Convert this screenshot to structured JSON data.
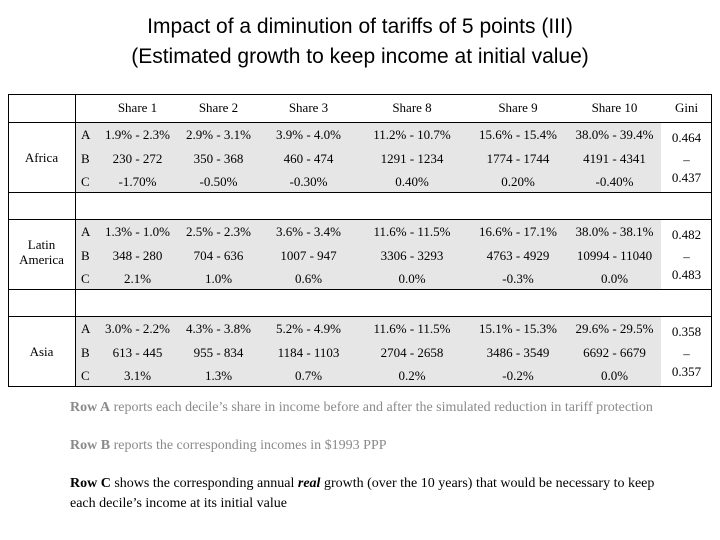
{
  "title": {
    "line1": "Impact of a diminution of tariffs of 5 points (III)",
    "line2": "(Estimated growth to keep income at initial value)"
  },
  "table": {
    "headers": [
      "Share 1",
      "Share 2",
      "Share 3",
      "Share 8",
      "Share 9",
      "Share 10",
      "Gini"
    ],
    "regions": [
      {
        "name": "Africa",
        "rows": [
          {
            "label": "A",
            "cells": [
              "1.9% - 2.3%",
              "2.9% - 3.1%",
              "3.9% - 4.0%",
              "11.2% - 10.7%",
              "15.6% - 15.4%",
              "38.0% - 39.4%"
            ]
          },
          {
            "label": "B",
            "cells": [
              "230 - 272",
              "350 - 368",
              "460 - 474",
              "1291 - 1234",
              "1774 - 1744",
              "4191 - 4341"
            ]
          },
          {
            "label": "C",
            "cells": [
              "-1.70%",
              "-0.50%",
              "-0.30%",
              "0.40%",
              "0.20%",
              "-0.40%"
            ]
          }
        ],
        "gini": {
          "start": "0.464",
          "sep": "–",
          "end": "0.437"
        }
      },
      {
        "name": "Latin America",
        "name_line1": "Latin",
        "name_line2": "America",
        "rows": [
          {
            "label": "A",
            "cells": [
              "1.3% - 1.0%",
              "2.5% - 2.3%",
              "3.6% - 3.4%",
              "11.6% - 11.5%",
              "16.6% - 17.1%",
              "38.0% - 38.1%"
            ]
          },
          {
            "label": "B",
            "cells": [
              "348 - 280",
              "704 - 636",
              "1007 - 947",
              "3306 - 3293",
              "4763 - 4929",
              "10994 - 11040"
            ]
          },
          {
            "label": "C",
            "cells": [
              "2.1%",
              "1.0%",
              "0.6%",
              "0.0%",
              "-0.3%",
              "0.0%"
            ]
          }
        ],
        "gini": {
          "start": "0.482",
          "sep": "–",
          "end": "0.483"
        }
      },
      {
        "name": "Asia",
        "rows": [
          {
            "label": "A",
            "cells": [
              "3.0% - 2.2%",
              "4.3% - 3.8%",
              "5.2% - 4.9%",
              "11.6% - 11.5%",
              "15.1% - 15.3%",
              "29.6% - 29.5%"
            ]
          },
          {
            "label": "B",
            "cells": [
              "613 - 445",
              "955 - 834",
              "1184 - 1103",
              "2704 - 2658",
              "3486 - 3549",
              "6692 - 6679"
            ]
          },
          {
            "label": "C",
            "cells": [
              "3.1%",
              "1.3%",
              "0.7%",
              "0.2%",
              "-0.2%",
              "0.0%"
            ]
          }
        ],
        "gini": {
          "start": "0.358",
          "sep": "–",
          "end": "0.357"
        }
      }
    ]
  },
  "notes": {
    "row_a": {
      "lead": "Row A",
      "text": " reports each decile’s share in income before and after the simulated reduction in tariff protection"
    },
    "row_b": {
      "lead": "Row B",
      "text": " reports the corresponding incomes in $1993 PPP"
    },
    "row_c": {
      "lead": "Row C",
      "text_before": " shows the corresponding annual ",
      "emph": "real",
      "text_after": " growth (over the 10 years) that would be necessary to keep each decile’s income at its initial value"
    }
  }
}
